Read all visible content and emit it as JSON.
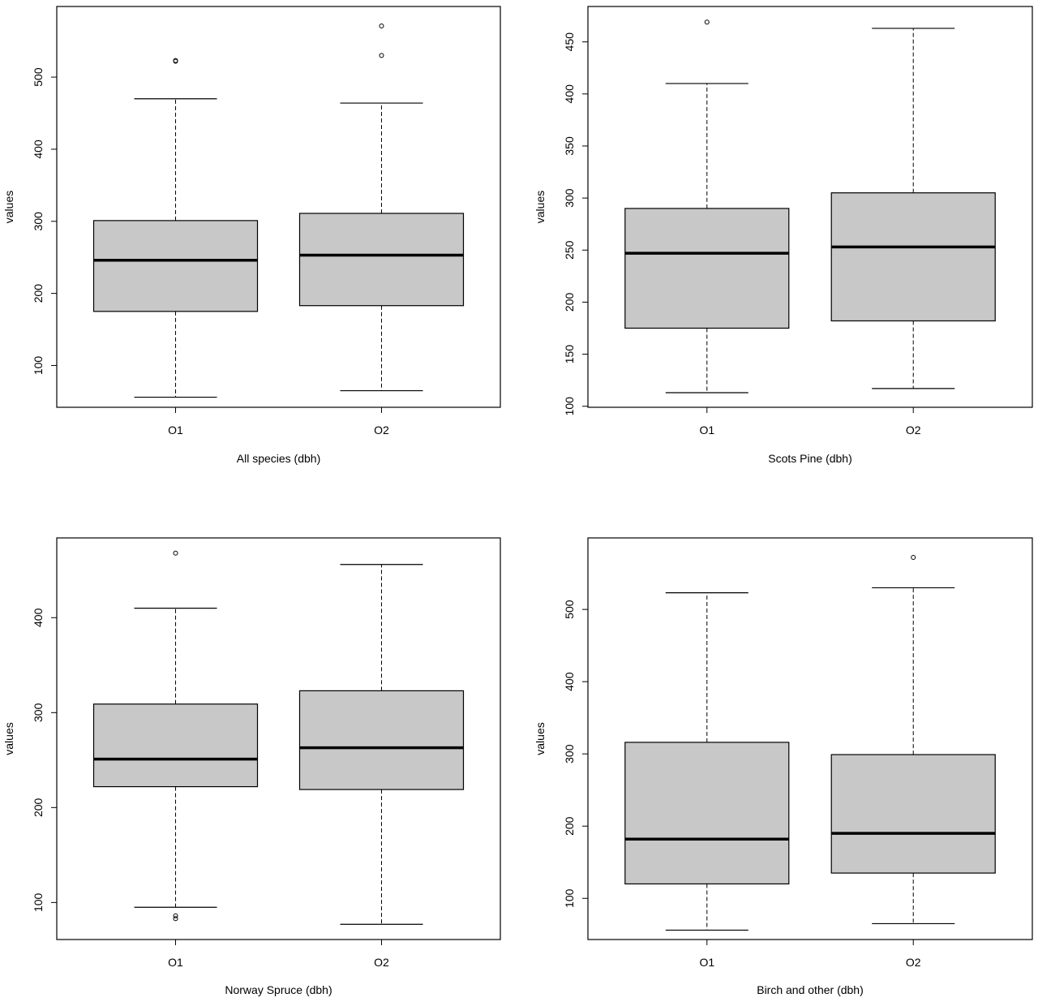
{
  "chart_data": [
    {
      "type": "boxplot",
      "xlabel": "All species (dbh)",
      "ylabel": "values",
      "categories": [
        "O1",
        "O2"
      ],
      "yticks": [
        100,
        200,
        300,
        400,
        500
      ],
      "ylim": [
        42,
        598
      ],
      "boxes": [
        {
          "category": "O1",
          "lower_whisker": 56,
          "q1": 175,
          "median": 246,
          "q3": 301,
          "upper_whisker": 470,
          "outliers": [
            522,
            523
          ]
        },
        {
          "category": "O2",
          "lower_whisker": 65,
          "q1": 183,
          "median": 253,
          "q3": 311,
          "upper_whisker": 464,
          "outliers": [
            530,
            571
          ]
        }
      ]
    },
    {
      "type": "boxplot",
      "xlabel": "Scots Pine (dbh)",
      "ylabel": "values",
      "categories": [
        "O1",
        "O2"
      ],
      "yticks": [
        100,
        150,
        200,
        250,
        300,
        350,
        400,
        450
      ],
      "ylim": [
        99,
        484
      ],
      "boxes": [
        {
          "category": "O1",
          "lower_whisker": 113,
          "q1": 175,
          "median": 247,
          "q3": 290,
          "upper_whisker": 410,
          "outliers": [
            469
          ]
        },
        {
          "category": "O2",
          "lower_whisker": 117,
          "q1": 182,
          "median": 253,
          "q3": 305,
          "upper_whisker": 463,
          "outliers": []
        }
      ]
    },
    {
      "type": "boxplot",
      "xlabel": "Norway Spruce (dbh)",
      "ylabel": "values",
      "categories": [
        "O1",
        "O2"
      ],
      "yticks": [
        100,
        200,
        300,
        400
      ],
      "ylim": [
        61,
        484
      ],
      "boxes": [
        {
          "category": "O1",
          "lower_whisker": 95,
          "q1": 222,
          "median": 251,
          "q3": 309,
          "upper_whisker": 410,
          "outliers": [
            83,
            86,
            468
          ]
        },
        {
          "category": "O2",
          "lower_whisker": 77,
          "q1": 219,
          "median": 263,
          "q3": 323,
          "upper_whisker": 456,
          "outliers": []
        }
      ]
    },
    {
      "type": "boxplot",
      "xlabel": "Birch and other (dbh)",
      "ylabel": "values",
      "categories": [
        "O1",
        "O2"
      ],
      "yticks": [
        100,
        200,
        300,
        400,
        500
      ],
      "ylim": [
        43,
        599
      ],
      "boxes": [
        {
          "category": "O1",
          "lower_whisker": 56,
          "q1": 120,
          "median": 182,
          "q3": 316,
          "upper_whisker": 523,
          "outliers": []
        },
        {
          "category": "O2",
          "lower_whisker": 65,
          "q1": 135,
          "median": 190,
          "q3": 299,
          "upper_whisker": 530,
          "outliers": [
            572
          ]
        }
      ]
    }
  ]
}
